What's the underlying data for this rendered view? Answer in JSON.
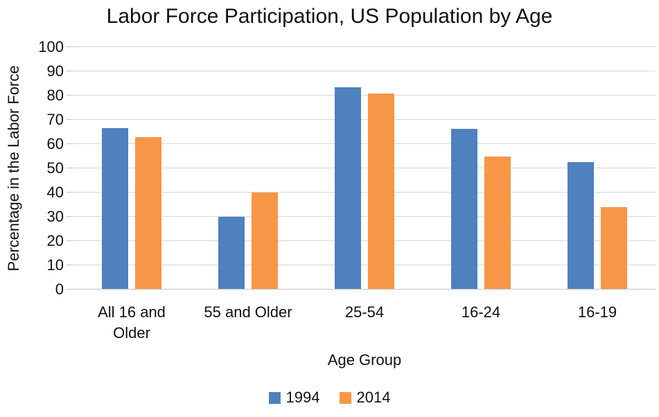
{
  "chart_data": {
    "type": "bar",
    "title": "Labor Force Participation, US Population by Age",
    "xlabel": "Age Group",
    "ylabel": "Percentage in the Labor Force",
    "categories": [
      "All 16 and Older",
      "55 and Older",
      "25-54",
      "16-24",
      "16-19"
    ],
    "series": [
      {
        "name": "1994",
        "color": "#4e81bd",
        "values": [
          66.6,
          30.1,
          83.4,
          66.4,
          52.7
        ]
      },
      {
        "name": "2014",
        "color": "#f79646",
        "values": [
          62.9,
          40.0,
          80.9,
          55.0,
          34.0
        ]
      }
    ],
    "ylim": [
      0,
      100
    ],
    "yticks": [
      0,
      10,
      20,
      30,
      40,
      50,
      60,
      70,
      80,
      90,
      100
    ],
    "grid": true,
    "gridline_color": "#d6d6d6",
    "legend_position": "bottom"
  }
}
